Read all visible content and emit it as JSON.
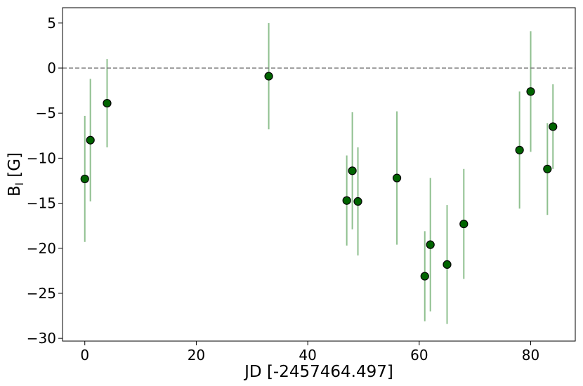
{
  "chart_data": {
    "type": "scatter",
    "xlabel": "JD [-2457464.497]",
    "ylabel_main": "B",
    "ylabel_sub": "l",
    "ylabel_unit": " [G]",
    "xlim": [
      -4,
      88
    ],
    "ylim": [
      -30.3,
      6.7
    ],
    "x_ticks": [
      0,
      20,
      40,
      60,
      80
    ],
    "x_tick_labels": [
      "0",
      "20",
      "40",
      "60",
      "80"
    ],
    "y_ticks": [
      5,
      0,
      -5,
      -10,
      -15,
      -20,
      -25,
      -30
    ],
    "y_tick_labels": [
      "5",
      "0",
      "−5",
      "−10",
      "−15",
      "−20",
      "−25",
      "−30"
    ],
    "reference_line": {
      "y": 0,
      "style": "dashed",
      "color": "#808080"
    },
    "marker_color": "#006400",
    "errorbar_color": "#8fc08f",
    "grid": false,
    "legend": "none",
    "points": [
      {
        "x": 0,
        "y": -12.3,
        "err": 7.0
      },
      {
        "x": 1,
        "y": -8.0,
        "err": 6.8
      },
      {
        "x": 4,
        "y": -3.9,
        "err": 4.9
      },
      {
        "x": 33,
        "y": -0.9,
        "err": 5.9
      },
      {
        "x": 47,
        "y": -14.7,
        "err": 5.0
      },
      {
        "x": 48,
        "y": -11.4,
        "err": 6.5
      },
      {
        "x": 49,
        "y": -14.8,
        "err": 6.0
      },
      {
        "x": 56,
        "y": -12.2,
        "err": 7.4
      },
      {
        "x": 61,
        "y": -23.1,
        "err": 5.0
      },
      {
        "x": 62,
        "y": -19.6,
        "err": 7.4
      },
      {
        "x": 65,
        "y": -21.8,
        "err": 6.6
      },
      {
        "x": 68,
        "y": -17.3,
        "err": 6.1
      },
      {
        "x": 78,
        "y": -9.1,
        "err": 6.5
      },
      {
        "x": 80,
        "y": -2.6,
        "err": 6.7
      },
      {
        "x": 83,
        "y": -11.2,
        "err": 5.1
      },
      {
        "x": 84,
        "y": -6.5,
        "err": 4.7
      }
    ]
  }
}
